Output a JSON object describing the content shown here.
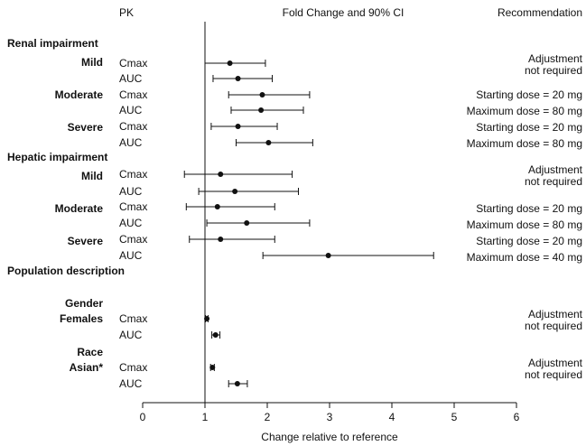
{
  "chart_data": {
    "type": "forest",
    "title": "",
    "header_pk": "PK",
    "header_ci": "Fold Change and 90% CI",
    "header_rec": "Recommendation",
    "xlabel": "Change relative to reference",
    "xlim": [
      0,
      6
    ],
    "xticks": [
      "0",
      "1",
      "2",
      "3",
      "4",
      "5",
      "6"
    ],
    "reference_x": 1,
    "groups": [
      "Renal impairment",
      "Hepatic impairment",
      "Population description"
    ],
    "subgroups": [
      "Mild",
      "Moderate",
      "Severe",
      "Mild",
      "Moderate",
      "Severe",
      "Gender\nFemales",
      "Race\nAsian*"
    ],
    "recommendations": [
      "Adjustment\nnot required",
      "Starting dose = 20 mg",
      "Maximum dose = 80 mg",
      "Starting dose = 20 mg",
      "Maximum dose = 80 mg",
      "Adjustment\nnot required",
      "Starting dose = 20 mg",
      "Maximum dose = 80 mg",
      "Starting dose = 20 mg",
      "Maximum dose = 40 mg",
      "Adjustment\nnot required",
      "Adjustment\nnot required"
    ],
    "rows": [
      {
        "pk": "Cmax",
        "estimate": 1.4,
        "lower": 1.0,
        "upper": 1.97
      },
      {
        "pk": "AUC",
        "estimate": 1.53,
        "lower": 1.13,
        "upper": 2.08
      },
      {
        "pk": "Cmax",
        "estimate": 1.92,
        "lower": 1.38,
        "upper": 2.68
      },
      {
        "pk": "AUC",
        "estimate": 1.9,
        "lower": 1.42,
        "upper": 2.58
      },
      {
        "pk": "Cmax",
        "estimate": 1.53,
        "lower": 1.1,
        "upper": 2.16
      },
      {
        "pk": "AUC",
        "estimate": 2.02,
        "lower": 1.5,
        "upper": 2.73
      },
      {
        "pk": "Cmax",
        "estimate": 1.25,
        "lower": 0.67,
        "upper": 2.4
      },
      {
        "pk": "AUC",
        "estimate": 1.48,
        "lower": 0.9,
        "upper": 2.5
      },
      {
        "pk": "Cmax",
        "estimate": 1.2,
        "lower": 0.7,
        "upper": 2.12
      },
      {
        "pk": "AUC",
        "estimate": 1.67,
        "lower": 1.03,
        "upper": 2.68
      },
      {
        "pk": "Cmax",
        "estimate": 1.25,
        "lower": 0.75,
        "upper": 2.12
      },
      {
        "pk": "AUC",
        "estimate": 2.98,
        "lower": 1.93,
        "upper": 4.67
      },
      {
        "pk": "Cmax",
        "estimate": 1.03,
        "lower": 1.01,
        "upper": 1.05
      },
      {
        "pk": "AUC",
        "estimate": 1.17,
        "lower": 1.11,
        "upper": 1.24
      },
      {
        "pk": "Cmax",
        "estimate": 1.12,
        "lower": 1.09,
        "upper": 1.15
      },
      {
        "pk": "AUC",
        "estimate": 1.52,
        "lower": 1.38,
        "upper": 1.68
      }
    ]
  }
}
